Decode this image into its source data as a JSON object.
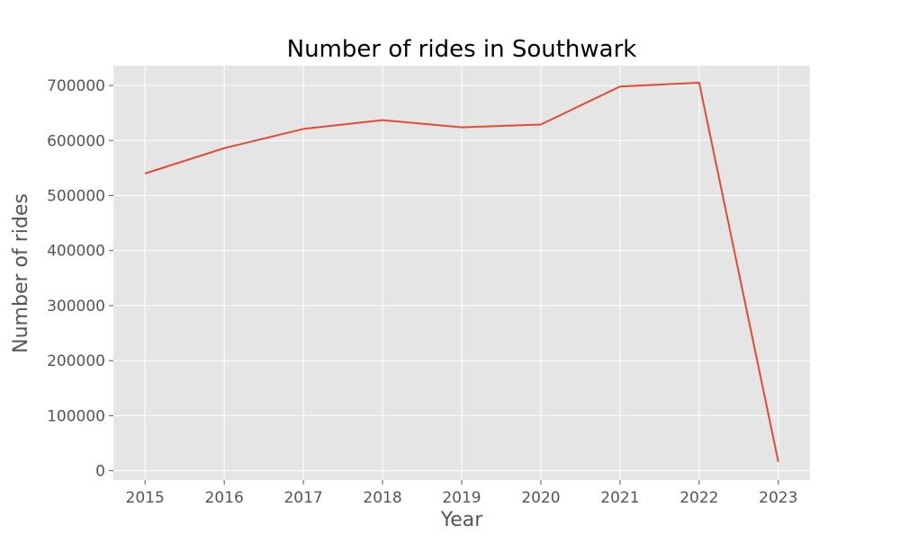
{
  "chart_data": {
    "type": "line",
    "title": "Number of rides in Southwark",
    "xlabel": "Year",
    "ylabel": "Number of rides",
    "x": [
      2015,
      2016,
      2017,
      2018,
      2019,
      2020,
      2021,
      2022,
      2023
    ],
    "x_tick_labels": [
      "2015",
      "2016",
      "2017",
      "2018",
      "2019",
      "2020",
      "2021",
      "2022",
      "2023"
    ],
    "y_ticks": [
      0,
      100000,
      200000,
      300000,
      400000,
      500000,
      600000,
      700000
    ],
    "y_tick_labels": [
      "0",
      "100000",
      "200000",
      "300000",
      "400000",
      "500000",
      "600000",
      "700000"
    ],
    "series": [
      {
        "values": [
          540000,
          586000,
          621000,
          637000,
          624000,
          629000,
          698000,
          705000,
          16000
        ],
        "color": "#E24A33"
      }
    ],
    "xlim": [
      2014.6,
      2023.4
    ],
    "ylim": [
      -17000,
      736000
    ],
    "grid": true,
    "legend": "none",
    "style": {
      "plot_background": "#E5E5E5",
      "grid_color": "#FFFFFF"
    }
  }
}
